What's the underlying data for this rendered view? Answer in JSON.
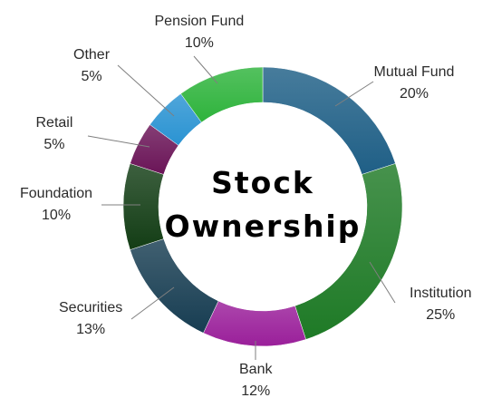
{
  "chart_data": {
    "type": "pie",
    "variant": "donut",
    "title_lines": [
      "Stock",
      "Ownership"
    ],
    "slices": [
      {
        "label": "Mutual Fund",
        "value": 20,
        "value_label": "20%",
        "color": "#1f5f86"
      },
      {
        "label": "Institution",
        "value": 25,
        "value_label": "25%",
        "color": "#1e7a26"
      },
      {
        "label": "Bank",
        "value": 12,
        "value_label": "12%",
        "color": "#9a1f9a"
      },
      {
        "label": "Securities",
        "value": 13,
        "value_label": "13%",
        "color": "#173d52"
      },
      {
        "label": "Foundation",
        "value": 10,
        "value_label": "10%",
        "color": "#133d15"
      },
      {
        "label": "Retail",
        "value": 5,
        "value_label": "5%",
        "color": "#6a1457"
      },
      {
        "label": "Other",
        "value": 5,
        "value_label": "5%",
        "color": "#2a93d2"
      },
      {
        "label": "Pension Fund",
        "value": 10,
        "value_label": "10%",
        "color": "#2eb33c"
      }
    ]
  }
}
